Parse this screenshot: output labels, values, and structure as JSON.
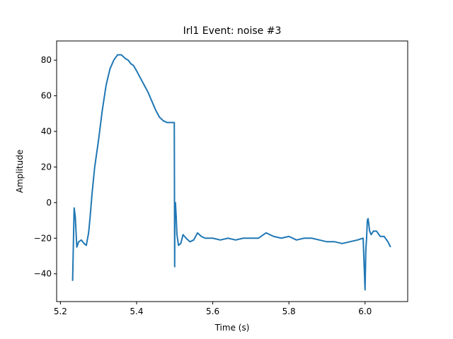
{
  "chart_data": {
    "type": "line",
    "title": "Irl1 Event: noise #3",
    "xlabel": "Time (s)",
    "ylabel": "Amplitude",
    "xlim": [
      5.19,
      6.112
    ],
    "ylim": [
      -55.6,
      90.8
    ],
    "xticks": [
      5.2,
      5.4,
      5.6,
      5.8,
      6.0
    ],
    "yticks": [
      -40,
      -20,
      0,
      20,
      40,
      60,
      80
    ],
    "xtick_labels": [
      "5.2",
      "5.4",
      "5.6",
      "5.8",
      "6.0"
    ],
    "ytick_labels": [
      "−40",
      "−20",
      "0",
      "20",
      "40",
      "60",
      "80"
    ],
    "grid": false,
    "series": [
      {
        "color": "#1f77b4",
        "x": [
          5.232,
          5.236,
          5.239,
          5.243,
          5.248,
          5.255,
          5.262,
          5.268,
          5.274,
          5.278,
          5.283,
          5.29,
          5.3,
          5.31,
          5.32,
          5.33,
          5.34,
          5.35,
          5.36,
          5.37,
          5.378,
          5.385,
          5.392,
          5.4,
          5.41,
          5.42,
          5.43,
          5.44,
          5.45,
          5.46,
          5.47,
          5.48,
          5.49,
          5.496,
          5.498,
          5.499,
          5.5,
          5.5005,
          5.502,
          5.504,
          5.506,
          5.51,
          5.516,
          5.522,
          5.53,
          5.54,
          5.55,
          5.56,
          5.57,
          5.58,
          5.59,
          5.6,
          5.62,
          5.64,
          5.66,
          5.68,
          5.7,
          5.72,
          5.74,
          5.76,
          5.78,
          5.8,
          5.82,
          5.84,
          5.86,
          5.88,
          5.9,
          5.92,
          5.94,
          5.96,
          5.98,
          5.995,
          6.0,
          6.002,
          6.004,
          6.006,
          6.008,
          6.012,
          6.016,
          6.022,
          6.03,
          6.04,
          6.05,
          6.06,
          6.067
        ],
        "y": [
          -44,
          -3,
          -8,
          -25,
          -22,
          -21,
          -23,
          -24,
          -17,
          -8,
          5,
          20,
          35,
          52,
          66,
          75,
          80,
          83,
          83,
          81,
          80,
          78,
          77,
          74,
          70,
          66,
          62,
          57,
          52,
          48,
          46,
          45,
          45,
          45,
          45,
          45,
          -36,
          -2,
          0,
          -8,
          -18,
          -24,
          -23,
          -18,
          -20,
          -22,
          -21,
          -17,
          -19,
          -20,
          -20,
          -20,
          -21,
          -20,
          -21,
          -20,
          -20,
          -20,
          -17,
          -19,
          -20,
          -19,
          -21,
          -20,
          -20,
          -21,
          -22,
          -22,
          -23,
          -22,
          -21,
          -20,
          -49,
          -27,
          -20,
          -10,
          -9,
          -16,
          -18,
          -16,
          -16,
          -19,
          -19,
          -22,
          -25
        ]
      }
    ]
  }
}
